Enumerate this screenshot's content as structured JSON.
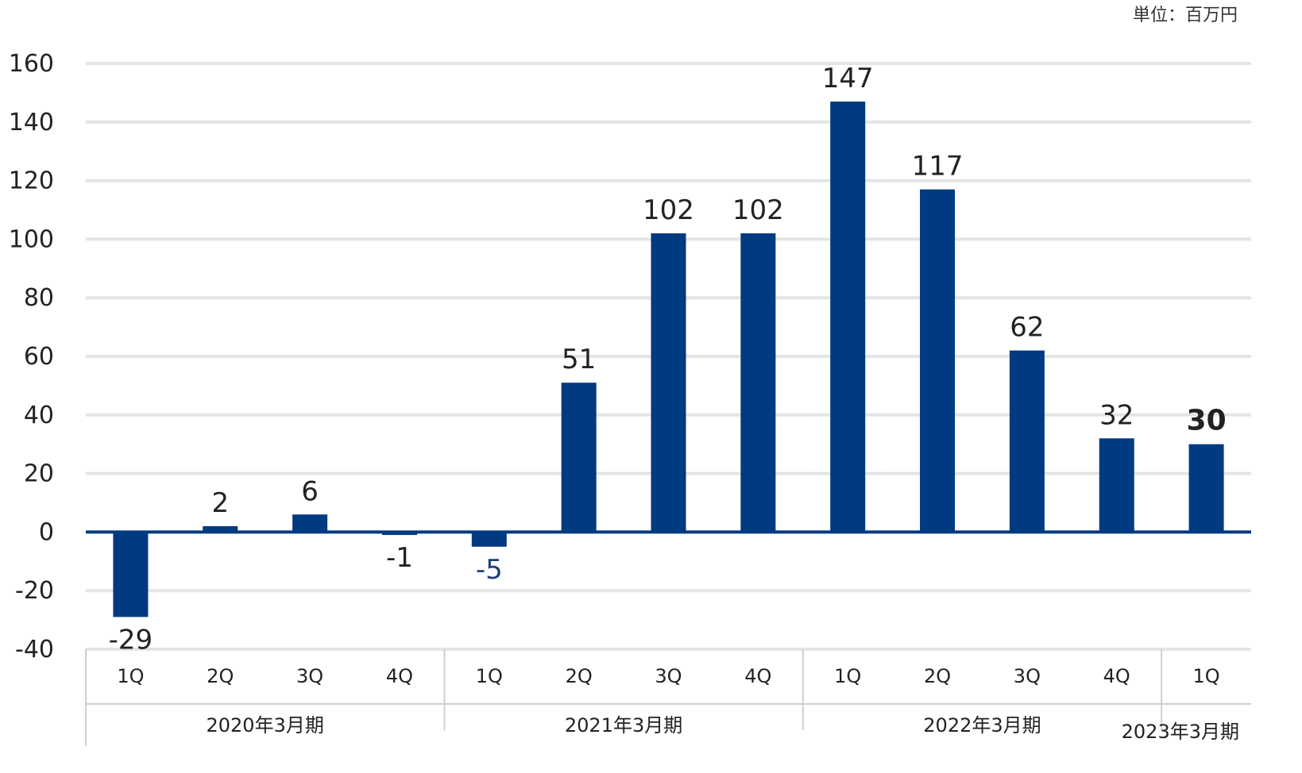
{
  "unit_label": "単位：百万円",
  "colors": {
    "bar": "#003a80",
    "grid": "#e4e4e4",
    "axis": "#003a80",
    "divider": "#cfcfcf"
  },
  "chart_data": {
    "type": "bar",
    "categories": [
      "1Q",
      "2Q",
      "3Q",
      "4Q",
      "1Q",
      "2Q",
      "3Q",
      "4Q",
      "1Q",
      "2Q",
      "3Q",
      "4Q",
      "1Q"
    ],
    "periods": [
      {
        "label": "2020年3月期",
        "quarters": 4
      },
      {
        "label": "2021年3月期",
        "quarters": 4
      },
      {
        "label": "2022年3月期",
        "quarters": 4
      },
      {
        "label": "2023年3月期",
        "quarters": 1
      }
    ],
    "values": [
      -29,
      2,
      6,
      -1,
      -5,
      51,
      102,
      102,
      147,
      117,
      62,
      32,
      30
    ],
    "data_labels": [
      "-29",
      "2",
      "6",
      "-1",
      "-5",
      "51",
      "102",
      "102",
      "147",
      "117",
      "62",
      "32",
      "30"
    ],
    "ylim": [
      -40,
      160
    ],
    "yticks": [
      160,
      140,
      120,
      100,
      80,
      60,
      40,
      20,
      0,
      -20,
      -40
    ],
    "grid": true,
    "legend": "none"
  }
}
